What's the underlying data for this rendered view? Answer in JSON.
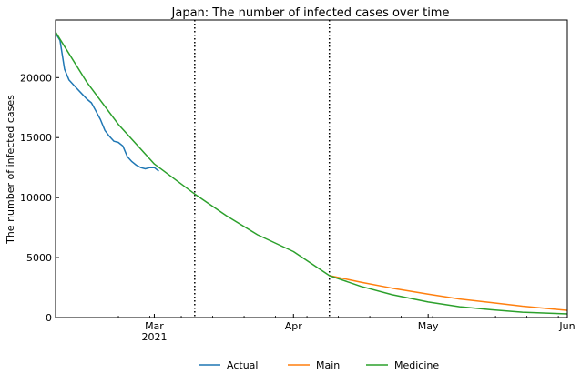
{
  "chart_data": {
    "type": "line",
    "title": "Japan: The number of infected cases over time",
    "xlabel": "",
    "ylabel": "The number of infected cases",
    "xlim": [
      "2021-02-07",
      "2021-06-01"
    ],
    "ylim": [
      0,
      24800
    ],
    "x_ticks": [
      {
        "date": "2021-03-01",
        "label": "Mar",
        "sublabel": "2021"
      },
      {
        "date": "2021-04-01",
        "label": "Apr",
        "sublabel": ""
      },
      {
        "date": "2021-05-01",
        "label": "May",
        "sublabel": ""
      },
      {
        "date": "2021-06-01",
        "label": "Jun",
        "sublabel": ""
      }
    ],
    "y_ticks": [
      {
        "value": 0,
        "label": "0"
      },
      {
        "value": 5000,
        "label": "5000"
      },
      {
        "value": 10000,
        "label": "10000"
      },
      {
        "value": 15000,
        "label": "15000"
      },
      {
        "value": 20000,
        "label": "20000"
      }
    ],
    "vlines": [
      "2021-03-10",
      "2021-04-09"
    ],
    "legend_position": "bottom",
    "grid": false,
    "series": [
      {
        "name": "Actual",
        "color": "#1f77b4",
        "points": [
          [
            "2021-02-07",
            23700
          ],
          [
            "2021-02-08",
            23100
          ],
          [
            "2021-02-09",
            20700
          ],
          [
            "2021-02-10",
            19800
          ],
          [
            "2021-02-11",
            19400
          ],
          [
            "2021-02-12",
            19000
          ],
          [
            "2021-02-13",
            18600
          ],
          [
            "2021-02-14",
            18200
          ],
          [
            "2021-02-15",
            17900
          ],
          [
            "2021-02-16",
            17200
          ],
          [
            "2021-02-17",
            16500
          ],
          [
            "2021-02-18",
            15600
          ],
          [
            "2021-02-19",
            15100
          ],
          [
            "2021-02-20",
            14700
          ],
          [
            "2021-02-21",
            14600
          ],
          [
            "2021-02-22",
            14300
          ],
          [
            "2021-02-23",
            13400
          ],
          [
            "2021-02-24",
            13000
          ],
          [
            "2021-02-25",
            12700
          ],
          [
            "2021-02-26",
            12500
          ],
          [
            "2021-02-27",
            12400
          ],
          [
            "2021-02-28",
            12500
          ],
          [
            "2021-03-01",
            12500
          ],
          [
            "2021-03-02",
            12200
          ]
        ]
      },
      {
        "name": "Main",
        "color": "#ff7f0e",
        "points": [
          [
            "2021-04-09",
            3500
          ],
          [
            "2021-04-16",
            2950
          ],
          [
            "2021-04-23",
            2450
          ],
          [
            "2021-05-01",
            1950
          ],
          [
            "2021-05-08",
            1550
          ],
          [
            "2021-05-15",
            1250
          ],
          [
            "2021-05-22",
            950
          ],
          [
            "2021-06-01",
            600
          ]
        ]
      },
      {
        "name": "Medicine",
        "color": "#2ca02c",
        "points": [
          [
            "2021-02-07",
            23800
          ],
          [
            "2021-02-14",
            19600
          ],
          [
            "2021-02-21",
            16100
          ],
          [
            "2021-03-01",
            12800
          ],
          [
            "2021-03-10",
            10300
          ],
          [
            "2021-03-17",
            8500
          ],
          [
            "2021-03-24",
            6900
          ],
          [
            "2021-04-01",
            5500
          ],
          [
            "2021-04-09",
            3500
          ],
          [
            "2021-04-16",
            2600
          ],
          [
            "2021-04-23",
            1900
          ],
          [
            "2021-05-01",
            1300
          ],
          [
            "2021-05-08",
            900
          ],
          [
            "2021-05-15",
            650
          ],
          [
            "2021-05-22",
            450
          ],
          [
            "2021-06-01",
            300
          ]
        ]
      }
    ]
  }
}
